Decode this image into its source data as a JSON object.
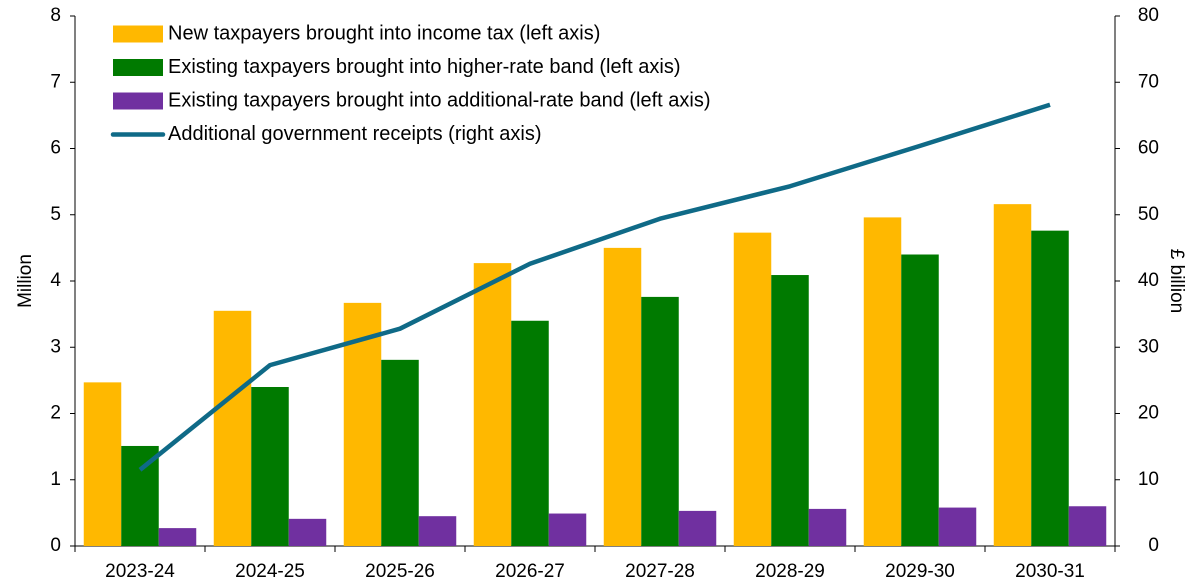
{
  "chart_data": {
    "type": "bar_line",
    "y_label": "Million",
    "y2_label": "£ billion",
    "categories": [
      "2023-24",
      "2024-25",
      "2025-26",
      "2026-27",
      "2027-28",
      "2028-29",
      "2029-30",
      "2030-31"
    ],
    "series": [
      {
        "name": "New taxpayers brought into income tax (left axis)",
        "color": "#ffb800",
        "type": "bar",
        "values": [
          2.47,
          3.55,
          3.67,
          4.27,
          4.5,
          4.73,
          4.96,
          5.16
        ]
      },
      {
        "name": "Existing taxpayers brought into higher-rate band (left axis)",
        "color": "#007a00",
        "type": "bar",
        "values": [
          1.51,
          2.4,
          2.81,
          3.4,
          3.76,
          4.09,
          4.4,
          4.76
        ]
      },
      {
        "name": "Existing taxpayers brought into additional-rate band (left axis)",
        "color": "#7030a0",
        "type": "bar",
        "values": [
          0.27,
          0.41,
          0.45,
          0.49,
          0.53,
          0.56,
          0.58,
          0.6
        ]
      },
      {
        "name": "Additional government receipts (right axis)",
        "color": "#0f6a87",
        "type": "line",
        "axis": "y2",
        "values": [
          11.5,
          27.3,
          32.8,
          42.6,
          49.4,
          54.3,
          60.4,
          66.6
        ]
      }
    ],
    "ylim": [
      0,
      8
    ],
    "yticks": [
      0,
      1,
      2,
      3,
      4,
      5,
      6,
      7,
      8
    ],
    "y2lim": [
      0,
      80
    ],
    "y2ticks": [
      0,
      10,
      20,
      30,
      40,
      50,
      60,
      70,
      80
    ],
    "grid": false
  }
}
